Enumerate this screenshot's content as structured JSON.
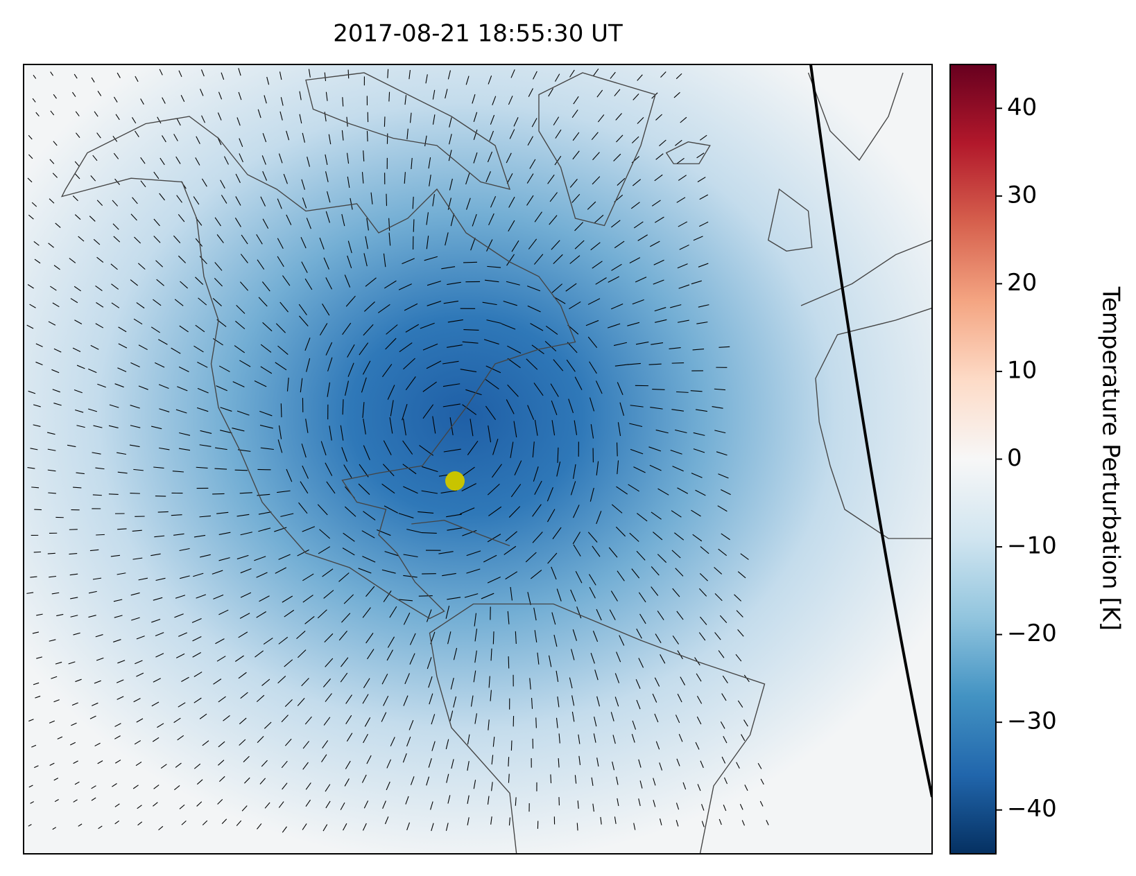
{
  "title": "2017-08-21 18:55:30 UT",
  "colorbar": {
    "label": "Temperature Perturbation [K]",
    "lim": [
      -45,
      45
    ],
    "ticks": [
      {
        "value": -40,
        "label": "−40"
      },
      {
        "value": -30,
        "label": "−30"
      },
      {
        "value": -20,
        "label": "−20"
      },
      {
        "value": -10,
        "label": "−10"
      },
      0,
      10,
      20,
      30,
      40
    ]
  }
}
